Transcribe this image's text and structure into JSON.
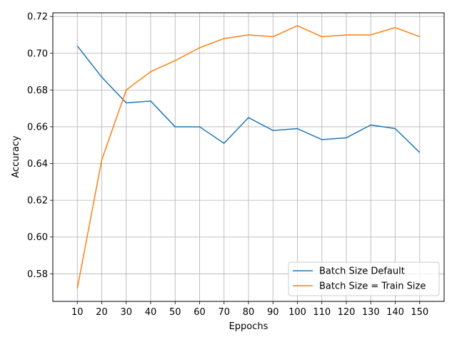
{
  "chart_data": {
    "type": "line",
    "title": "",
    "xlabel": "Eppochs",
    "ylabel": "Accuracy",
    "x": [
      10,
      20,
      30,
      40,
      50,
      60,
      70,
      80,
      90,
      100,
      110,
      120,
      130,
      140,
      150
    ],
    "xlim": [
      0,
      160
    ],
    "ylim": [
      0.565,
      0.722
    ],
    "yticks": [
      0.58,
      0.6,
      0.62,
      0.64,
      0.66,
      0.68,
      0.7,
      0.72
    ],
    "ytick_labels": [
      "0.58",
      "0.60",
      "0.62",
      "0.64",
      "0.66",
      "0.68",
      "0.70",
      "0.72"
    ],
    "grid": true,
    "legend_position": "lower-right",
    "series": [
      {
        "name": "Batch Size Default",
        "color": "#1f77b4",
        "values": [
          0.704,
          0.687,
          0.673,
          0.674,
          0.66,
          0.66,
          0.651,
          0.665,
          0.658,
          0.659,
          0.653,
          0.654,
          0.661,
          0.659,
          0.646
        ]
      },
      {
        "name": "Batch Size = Train Size",
        "color": "#ff7f0e",
        "values": [
          0.572,
          0.642,
          0.68,
          0.69,
          0.696,
          0.703,
          0.708,
          0.71,
          0.709,
          0.715,
          0.709,
          0.71,
          0.71,
          0.714,
          0.709
        ]
      }
    ]
  }
}
